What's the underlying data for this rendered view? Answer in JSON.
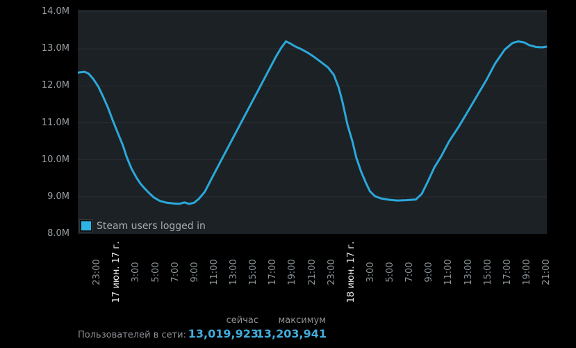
{
  "page": {
    "background": "#000000",
    "plot_background": "#1c2125",
    "grid_color": "#2c3136"
  },
  "chart_data": {
    "type": "line",
    "title": "",
    "xlabel": "",
    "ylabel": "",
    "xlim": [
      0,
      48
    ],
    "ylim": [
      8,
      14
    ],
    "grid": true,
    "legend_position": "bottom-left-inside",
    "y_ticks": [
      {
        "value": 14,
        "label": "14.0M",
        "grid": true
      },
      {
        "value": 13,
        "label": "13.0M",
        "grid": true
      },
      {
        "value": 12,
        "label": "12.0M",
        "grid": true
      },
      {
        "value": 11,
        "label": "11.0M",
        "grid": true
      },
      {
        "value": 10,
        "label": "10.0M",
        "grid": true
      },
      {
        "value": 9,
        "label": "9.0M",
        "grid": true
      },
      {
        "value": 8,
        "label": "8.0M",
        "grid": false
      }
    ],
    "x_ticks": [
      {
        "pos": 2,
        "label": "23:00",
        "date": false
      },
      {
        "pos": 4,
        "label": "17 июн. 17 г.",
        "date": true
      },
      {
        "pos": 6,
        "label": "3:00",
        "date": false
      },
      {
        "pos": 8,
        "label": "5:00",
        "date": false
      },
      {
        "pos": 10,
        "label": "7:00",
        "date": false
      },
      {
        "pos": 12,
        "label": "9:00",
        "date": false
      },
      {
        "pos": 14,
        "label": "11:00",
        "date": false
      },
      {
        "pos": 16,
        "label": "13:00",
        "date": false
      },
      {
        "pos": 18,
        "label": "15:00",
        "date": false
      },
      {
        "pos": 20,
        "label": "17:00",
        "date": false
      },
      {
        "pos": 22,
        "label": "19:00",
        "date": false
      },
      {
        "pos": 24,
        "label": "21:00",
        "date": false
      },
      {
        "pos": 26,
        "label": "23:00",
        "date": false
      },
      {
        "pos": 28,
        "label": "18 июн. 17 г.",
        "date": true
      },
      {
        "pos": 30,
        "label": "3:00",
        "date": false
      },
      {
        "pos": 32,
        "label": "5:00",
        "date": false
      },
      {
        "pos": 34,
        "label": "7:00",
        "date": false
      },
      {
        "pos": 36,
        "label": "9:00",
        "date": false
      },
      {
        "pos": 38,
        "label": "11:00",
        "date": false
      },
      {
        "pos": 40,
        "label": "13:00",
        "date": false
      },
      {
        "pos": 42,
        "label": "15:00",
        "date": false
      },
      {
        "pos": 44,
        "label": "17:00",
        "date": false
      },
      {
        "pos": 46,
        "label": "19:00",
        "date": false
      },
      {
        "pos": 48,
        "label": "21:00",
        "date": false
      }
    ],
    "series": [
      {
        "name": "Steam users logged in",
        "color": "#2bа8da",
        "unit": "millions of users",
        "points": [
          [
            0,
            12.36
          ],
          [
            0.7,
            12.38
          ],
          [
            1.1,
            12.33
          ],
          [
            1.6,
            12.18
          ],
          [
            2.1,
            11.98
          ],
          [
            2.6,
            11.7
          ],
          [
            3.1,
            11.4
          ],
          [
            3.6,
            11.05
          ],
          [
            4.1,
            10.72
          ],
          [
            4.6,
            10.4
          ],
          [
            5.0,
            10.08
          ],
          [
            5.5,
            9.76
          ],
          [
            6.0,
            9.52
          ],
          [
            6.4,
            9.36
          ],
          [
            6.8,
            9.24
          ],
          [
            7.3,
            9.1
          ],
          [
            7.8,
            8.98
          ],
          [
            8.4,
            8.89
          ],
          [
            9.1,
            8.84
          ],
          [
            9.8,
            8.82
          ],
          [
            10.4,
            8.81
          ],
          [
            10.9,
            8.85
          ],
          [
            11.4,
            8.81
          ],
          [
            11.9,
            8.84
          ],
          [
            12.4,
            8.95
          ],
          [
            13.0,
            9.14
          ],
          [
            13.7,
            9.5
          ],
          [
            14.6,
            9.95
          ],
          [
            15.6,
            10.45
          ],
          [
            16.6,
            10.95
          ],
          [
            17.6,
            11.45
          ],
          [
            18.6,
            11.95
          ],
          [
            19.6,
            12.45
          ],
          [
            20.3,
            12.8
          ],
          [
            20.8,
            13.02
          ],
          [
            21.3,
            13.2
          ],
          [
            21.7,
            13.15
          ],
          [
            22.2,
            13.07
          ],
          [
            22.8,
            13.0
          ],
          [
            23.5,
            12.9
          ],
          [
            24.2,
            12.78
          ],
          [
            24.9,
            12.64
          ],
          [
            25.6,
            12.5
          ],
          [
            26.2,
            12.3
          ],
          [
            26.7,
            11.95
          ],
          [
            27.1,
            11.55
          ],
          [
            27.6,
            10.95
          ],
          [
            28.1,
            10.5
          ],
          [
            28.5,
            10.06
          ],
          [
            29.0,
            9.68
          ],
          [
            29.5,
            9.37
          ],
          [
            29.9,
            9.15
          ],
          [
            30.4,
            9.02
          ],
          [
            31.0,
            8.96
          ],
          [
            31.9,
            8.92
          ],
          [
            32.7,
            8.9
          ],
          [
            33.6,
            8.91
          ],
          [
            34.6,
            8.93
          ],
          [
            35.2,
            9.08
          ],
          [
            35.8,
            9.4
          ],
          [
            36.5,
            9.8
          ],
          [
            37.2,
            10.1
          ],
          [
            38.0,
            10.5
          ],
          [
            39.0,
            10.9
          ],
          [
            39.9,
            11.3
          ],
          [
            40.9,
            11.75
          ],
          [
            41.8,
            12.15
          ],
          [
            42.7,
            12.6
          ],
          [
            43.7,
            12.98
          ],
          [
            44.5,
            13.16
          ],
          [
            45.1,
            13.2
          ],
          [
            45.7,
            13.17
          ],
          [
            46.2,
            13.1
          ],
          [
            46.9,
            13.05
          ],
          [
            47.5,
            13.04
          ],
          [
            48,
            13.06
          ]
        ]
      }
    ],
    "line_color": "#2ba8da",
    "legend_swatch_color": "#2db4e6"
  },
  "legend": {
    "label": "Steam users logged in"
  },
  "stats": {
    "columns": [
      "сейчас",
      "максимум"
    ],
    "row_label": "Пользователей в сети:",
    "current": "13,019,923",
    "peak": "13,203,941",
    "value_color": "#42acdc"
  }
}
